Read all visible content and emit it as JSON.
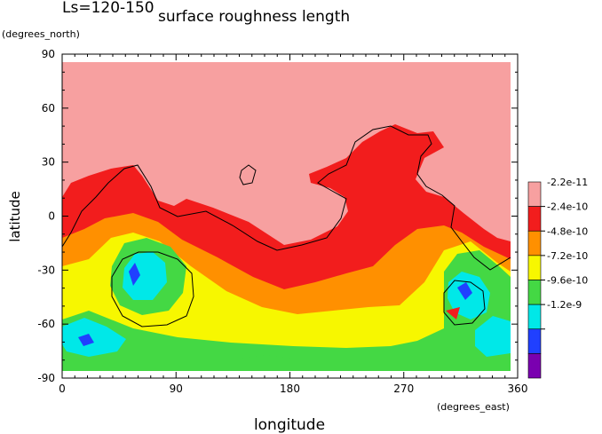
{
  "chart_data": {
    "type": "heatmap",
    "title": "surface roughness length",
    "subtitle": "Ls=120-150",
    "xlabel": "longitude",
    "ylabel": "latitude",
    "x_units": "(degrees_east)",
    "y_units": "(degrees_north)",
    "xlim": [
      0,
      360
    ],
    "ylim": [
      -90,
      90
    ],
    "x_ticks": [
      "0",
      "90",
      "180",
      "270",
      "360"
    ],
    "y_ticks": [
      "90",
      "60",
      "30",
      "0",
      "-30",
      "-60",
      "-90"
    ],
    "legend": {
      "placement": "right",
      "labels": [
        "-2.2e-11",
        "-2.4e-10",
        "-4.8e-10",
        "-7.2e-10",
        "-9.6e-10",
        "-1.2e-9"
      ],
      "colors": [
        "#f7a0a0",
        "#f21d1d",
        "#ff9000",
        "#f7f700",
        "#44d844",
        "#00e8e8",
        "#2040ff",
        "#7a00b0"
      ]
    }
  }
}
